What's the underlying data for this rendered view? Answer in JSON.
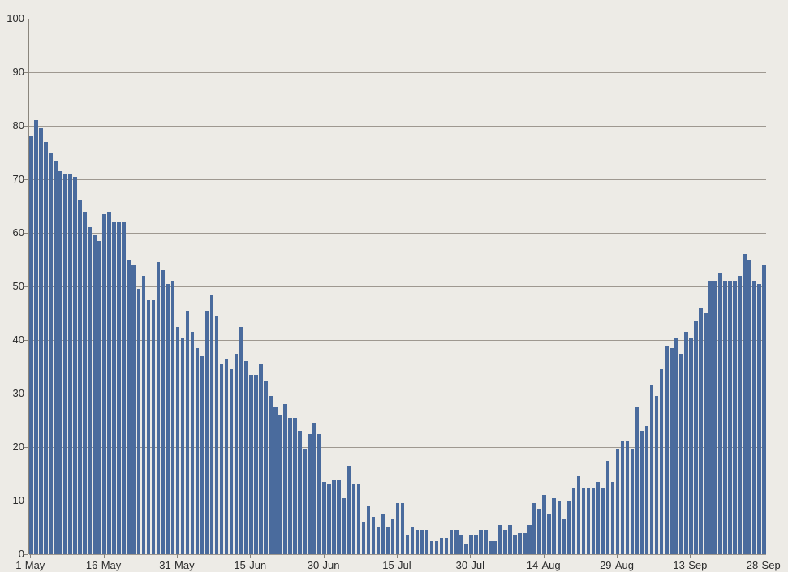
{
  "chart_data": {
    "type": "bar",
    "title": "",
    "xlabel": "",
    "ylabel": "",
    "ylim": [
      0,
      100
    ],
    "y_tick_step": 10,
    "y_ticks": [
      0,
      10,
      20,
      30,
      40,
      50,
      60,
      70,
      80,
      90,
      100
    ],
    "grid": "horizontal",
    "legend": "none",
    "x_tick_labels": [
      "1-May",
      "16-May",
      "31-May",
      "15-Jun",
      "30-Jun",
      "15-Jul",
      "30-Jul",
      "14-Aug",
      "29-Aug",
      "13-Sep",
      "28-Sep"
    ],
    "x_tick_day_indices": [
      0,
      15,
      30,
      45,
      60,
      75,
      90,
      105,
      120,
      135,
      150
    ],
    "colors": {
      "bar": "#4a6b9d",
      "background": "#edebe6",
      "gridline": "#9e9890",
      "axis": "#8a857c",
      "label_text": "#2b2b2b"
    },
    "x": [
      "1-May",
      "2-May",
      "3-May",
      "4-May",
      "5-May",
      "6-May",
      "7-May",
      "8-May",
      "9-May",
      "10-May",
      "11-May",
      "12-May",
      "13-May",
      "14-May",
      "15-May",
      "16-May",
      "17-May",
      "18-May",
      "19-May",
      "20-May",
      "21-May",
      "22-May",
      "23-May",
      "24-May",
      "25-May",
      "26-May",
      "27-May",
      "28-May",
      "29-May",
      "30-May",
      "31-May",
      "1-Jun",
      "2-Jun",
      "3-Jun",
      "4-Jun",
      "5-Jun",
      "6-Jun",
      "7-Jun",
      "8-Jun",
      "9-Jun",
      "10-Jun",
      "11-Jun",
      "12-Jun",
      "13-Jun",
      "14-Jun",
      "15-Jun",
      "16-Jun",
      "17-Jun",
      "18-Jun",
      "19-Jun",
      "20-Jun",
      "21-Jun",
      "22-Jun",
      "23-Jun",
      "24-Jun",
      "25-Jun",
      "26-Jun",
      "27-Jun",
      "28-Jun",
      "29-Jun",
      "30-Jun",
      "1-Jul",
      "2-Jul",
      "3-Jul",
      "4-Jul",
      "5-Jul",
      "6-Jul",
      "7-Jul",
      "8-Jul",
      "9-Jul",
      "10-Jul",
      "11-Jul",
      "12-Jul",
      "13-Jul",
      "14-Jul",
      "15-Jul",
      "16-Jul",
      "17-Jul",
      "18-Jul",
      "19-Jul",
      "20-Jul",
      "21-Jul",
      "22-Jul",
      "23-Jul",
      "24-Jul",
      "25-Jul",
      "26-Jul",
      "27-Jul",
      "28-Jul",
      "29-Jul",
      "30-Jul",
      "31-Jul",
      "1-Aug",
      "2-Aug",
      "3-Aug",
      "4-Aug",
      "5-Aug",
      "6-Aug",
      "7-Aug",
      "8-Aug",
      "9-Aug",
      "10-Aug",
      "11-Aug",
      "12-Aug",
      "13-Aug",
      "14-Aug",
      "15-Aug",
      "16-Aug",
      "17-Aug",
      "18-Aug",
      "19-Aug",
      "20-Aug",
      "21-Aug",
      "22-Aug",
      "23-Aug",
      "24-Aug",
      "25-Aug",
      "26-Aug",
      "27-Aug",
      "28-Aug",
      "29-Aug",
      "30-Aug",
      "31-Aug",
      "1-Sep",
      "2-Sep",
      "3-Sep",
      "4-Sep",
      "5-Sep",
      "6-Sep",
      "7-Sep",
      "8-Sep",
      "9-Sep",
      "10-Sep",
      "11-Sep",
      "12-Sep",
      "13-Sep",
      "14-Sep",
      "15-Sep",
      "16-Sep",
      "17-Sep",
      "18-Sep",
      "19-Sep",
      "20-Sep",
      "21-Sep",
      "22-Sep",
      "23-Sep",
      "24-Sep",
      "25-Sep",
      "26-Sep",
      "27-Sep",
      "28-Sep"
    ],
    "values": [
      78,
      81,
      79.5,
      77,
      75,
      73.5,
      71.5,
      71,
      71,
      70.5,
      66,
      64,
      61,
      59.5,
      58.5,
      63.5,
      64,
      62,
      62,
      62,
      55,
      54,
      49.5,
      52,
      47.5,
      47.5,
      54.5,
      53,
      50.5,
      51,
      42.5,
      40.5,
      45.5,
      41.5,
      38.5,
      37,
      45.5,
      48.5,
      44.5,
      35.5,
      36.5,
      34.5,
      37.5,
      42.5,
      36,
      33.5,
      33.5,
      35.5,
      32.5,
      29.5,
      27.5,
      26,
      28,
      25.5,
      25.5,
      23,
      19.5,
      22.5,
      24.5,
      22.5,
      13.5,
      13,
      14,
      14,
      10.5,
      16.5,
      13,
      13,
      6,
      9,
      7,
      5,
      7.5,
      5,
      6.5,
      9.5,
      9.5,
      3.5,
      5,
      4.5,
      4.5,
      4.5,
      2.5,
      2.5,
      3,
      3,
      4.5,
      4.5,
      3.5,
      2,
      3.5,
      3.5,
      4.5,
      4.5,
      2.5,
      2.5,
      5.5,
      4.5,
      5.5,
      3.5,
      4,
      4,
      5.5,
      9.5,
      8.5,
      11,
      7.5,
      10.5,
      10,
      6.5,
      10,
      12.5,
      14.5,
      12.5,
      12.5,
      12.5,
      13.5,
      12.5,
      17.5,
      13.5,
      19.5,
      21,
      21,
      19.5,
      27.5,
      23,
      24,
      31.5,
      29.5,
      34.5,
      39,
      38.5,
      40.5,
      37.5,
      41.5,
      40.5,
      43.5,
      46,
      45,
      51,
      51,
      52.5,
      51,
      51,
      51,
      52,
      56,
      55,
      51,
      50.5,
      54
    ]
  }
}
